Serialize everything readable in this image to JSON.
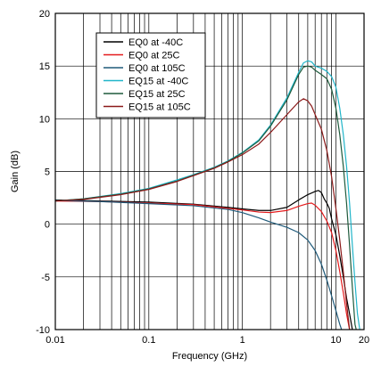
{
  "chart_data": {
    "type": "line",
    "xlabel": "Frequency (GHz)",
    "ylabel": "Gain (dB)",
    "x_scale": "log",
    "xlim": [
      0.01,
      20
    ],
    "ylim": [
      -10,
      20
    ],
    "grid": true,
    "legend_position": "top-left",
    "x_ticks": [
      {
        "value": 0.01,
        "label": "0.01"
      },
      {
        "value": 0.1,
        "label": "0.1"
      },
      {
        "value": 1,
        "label": "1"
      },
      {
        "value": 10,
        "label": "10"
      },
      {
        "value": 20,
        "label": "20"
      }
    ],
    "y_ticks": [
      {
        "value": -10,
        "label": "-10"
      },
      {
        "value": -5,
        "label": "-5"
      },
      {
        "value": 0,
        "label": "0"
      },
      {
        "value": 5,
        "label": "5"
      },
      {
        "value": 10,
        "label": "10"
      },
      {
        "value": 15,
        "label": "15"
      },
      {
        "value": 20,
        "label": "20"
      }
    ],
    "series": [
      {
        "name": "EQ0 at -40C",
        "color": "#000000",
        "points": [
          [
            0.01,
            2.3
          ],
          [
            0.03,
            2.2
          ],
          [
            0.1,
            2.1
          ],
          [
            0.3,
            1.9
          ],
          [
            0.7,
            1.6
          ],
          [
            1,
            1.45
          ],
          [
            1.5,
            1.3
          ],
          [
            2,
            1.3
          ],
          [
            3,
            1.6
          ],
          [
            4,
            2.3
          ],
          [
            5,
            2.8
          ],
          [
            6,
            3.1
          ],
          [
            6.5,
            3.2
          ],
          [
            7,
            3.0
          ],
          [
            7.5,
            2.4
          ],
          [
            8,
            2.0
          ],
          [
            8.5,
            1.5
          ],
          [
            9,
            0.5
          ],
          [
            10,
            -1.0
          ],
          [
            11,
            -3.0
          ],
          [
            12,
            -5.0
          ],
          [
            13,
            -7.0
          ],
          [
            14,
            -8.5
          ],
          [
            15,
            -10
          ]
        ]
      },
      {
        "name": "EQ0 at 25C",
        "color": "#e41a1c",
        "points": [
          [
            0.01,
            2.2
          ],
          [
            0.03,
            2.15
          ],
          [
            0.1,
            2.0
          ],
          [
            0.3,
            1.85
          ],
          [
            0.7,
            1.5
          ],
          [
            1,
            1.35
          ],
          [
            1.5,
            1.15
          ],
          [
            2,
            1.1
          ],
          [
            3,
            1.3
          ],
          [
            4,
            1.7
          ],
          [
            5,
            1.95
          ],
          [
            5.5,
            2.0
          ],
          [
            6,
            1.8
          ],
          [
            7,
            1.2
          ],
          [
            8,
            0.3
          ],
          [
            9,
            -0.8
          ],
          [
            10,
            -2.5
          ],
          [
            11,
            -4.5
          ],
          [
            12,
            -6.5
          ],
          [
            13,
            -8.5
          ],
          [
            14,
            -10
          ]
        ]
      },
      {
        "name": "EQ0 at 105C",
        "color": "#1f5a7a",
        "points": [
          [
            0.01,
            2.25
          ],
          [
            0.03,
            2.15
          ],
          [
            0.1,
            1.95
          ],
          [
            0.3,
            1.75
          ],
          [
            0.7,
            1.4
          ],
          [
            1,
            1.1
          ],
          [
            1.5,
            0.6
          ],
          [
            2,
            0.2
          ],
          [
            3,
            -0.3
          ],
          [
            4,
            -0.8
          ],
          [
            5,
            -1.5
          ],
          [
            6,
            -2.5
          ],
          [
            7,
            -3.8
          ],
          [
            8,
            -5.3
          ],
          [
            9,
            -6.8
          ],
          [
            10,
            -8.2
          ],
          [
            11,
            -9.5
          ],
          [
            11.5,
            -10
          ]
        ]
      },
      {
        "name": "EQ15 at -40C",
        "color": "#21b5c9",
        "points": [
          [
            0.01,
            2.2
          ],
          [
            0.02,
            2.4
          ],
          [
            0.05,
            2.9
          ],
          [
            0.1,
            3.4
          ],
          [
            0.2,
            4.2
          ],
          [
            0.3,
            4.7
          ],
          [
            0.5,
            5.4
          ],
          [
            0.7,
            6.0
          ],
          [
            1,
            6.8
          ],
          [
            1.5,
            8.0
          ],
          [
            2,
            9.4
          ],
          [
            3,
            12.0
          ],
          [
            4,
            14.4
          ],
          [
            4.5,
            15.3
          ],
          [
            5,
            15.5
          ],
          [
            5.5,
            15.4
          ],
          [
            6,
            15.0
          ],
          [
            7,
            14.8
          ],
          [
            8,
            14.5
          ],
          [
            9,
            14.0
          ],
          [
            10,
            13.0
          ],
          [
            11,
            11.0
          ],
          [
            12,
            8.5
          ],
          [
            13,
            5.5
          ],
          [
            14,
            2.0
          ],
          [
            15,
            -2.0
          ],
          [
            16,
            -5.5
          ],
          [
            17,
            -8.5
          ],
          [
            18,
            -10
          ]
        ]
      },
      {
        "name": "EQ15 at 25C",
        "color": "#1e5a3c",
        "points": [
          [
            0.01,
            2.2
          ],
          [
            0.02,
            2.4
          ],
          [
            0.05,
            2.85
          ],
          [
            0.1,
            3.35
          ],
          [
            0.2,
            4.1
          ],
          [
            0.3,
            4.65
          ],
          [
            0.5,
            5.35
          ],
          [
            0.7,
            5.95
          ],
          [
            1,
            6.75
          ],
          [
            1.5,
            7.9
          ],
          [
            2,
            9.3
          ],
          [
            3,
            11.8
          ],
          [
            4,
            14.2
          ],
          [
            4.5,
            14.9
          ],
          [
            5,
            15.0
          ],
          [
            5.5,
            14.9
          ],
          [
            6,
            14.6
          ],
          [
            7,
            14.2
          ],
          [
            8,
            13.8
          ],
          [
            9,
            12.8
          ],
          [
            10,
            11.0
          ],
          [
            11,
            8.5
          ],
          [
            12,
            5.5
          ],
          [
            13,
            2.0
          ],
          [
            14,
            -2.0
          ],
          [
            15,
            -6.0
          ],
          [
            16,
            -9.5
          ],
          [
            16.5,
            -10
          ]
        ]
      },
      {
        "name": "EQ15 at 105C",
        "color": "#8b1a1a",
        "points": [
          [
            0.01,
            2.2
          ],
          [
            0.02,
            2.35
          ],
          [
            0.05,
            2.8
          ],
          [
            0.1,
            3.3
          ],
          [
            0.2,
            4.05
          ],
          [
            0.3,
            4.6
          ],
          [
            0.5,
            5.3
          ],
          [
            0.7,
            5.9
          ],
          [
            1,
            6.6
          ],
          [
            1.5,
            7.6
          ],
          [
            2,
            8.7
          ],
          [
            3,
            10.4
          ],
          [
            4,
            11.6
          ],
          [
            4.5,
            11.9
          ],
          [
            5,
            11.7
          ],
          [
            5.5,
            11.2
          ],
          [
            6,
            10.4
          ],
          [
            7,
            9.0
          ],
          [
            8,
            7.0
          ],
          [
            9,
            4.5
          ],
          [
            10,
            1.5
          ],
          [
            11,
            -1.5
          ],
          [
            12,
            -4.5
          ],
          [
            13,
            -7.5
          ],
          [
            14,
            -10
          ]
        ]
      }
    ]
  }
}
